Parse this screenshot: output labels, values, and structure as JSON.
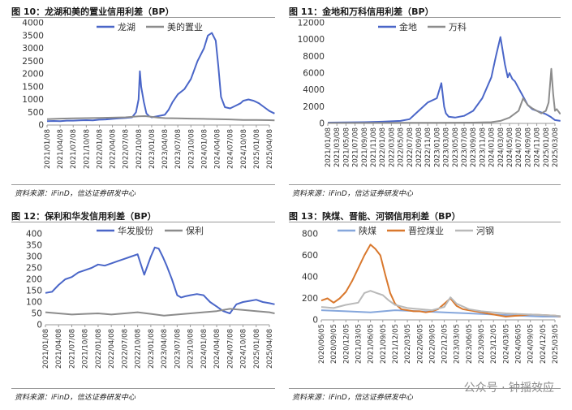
{
  "watermark": "公众号 · 钟揺效应",
  "colors": {
    "blue": "#4a66c8",
    "gray": "#8c8c8c",
    "orange": "#d9782d",
    "lightblue": "#86a7dc",
    "lightgray": "#b9b9b9"
  },
  "chart_data": [
    {
      "type": "line",
      "title": "图 10：龙湖和美的置业信用利差（BP）",
      "source": "资料来源：iFinD，信达证券研发中心",
      "ylim": [
        0,
        4000
      ],
      "yticks": [
        "0",
        "500",
        "1000",
        "1500",
        "2000",
        "2500",
        "3000",
        "3500",
        "4000"
      ],
      "xticks": [
        "2021/01/08",
        "2021/04/08",
        "2021/07/08",
        "2021/10/08",
        "2022/01/08",
        "2022/04/08",
        "2022/07/08",
        "2022/10/08",
        "2023/01/08",
        "2023/04/08",
        "2023/07/08",
        "2023/10/08",
        "2024/01/08",
        "2024/04/08",
        "2024/07/08",
        "2024/10/08",
        "2025/01/08",
        "2025/04/08"
      ],
      "series": [
        {
          "name": "龙湖",
          "color": "#4a66c8",
          "x": [
            0,
            0.5,
            1,
            1.5,
            2,
            2.5,
            3,
            3.5,
            4,
            4.5,
            5,
            5.5,
            6,
            6.5,
            6.8,
            7,
            7.1,
            7.2,
            7.4,
            7.6,
            7.8,
            8,
            8.5,
            9,
            9.3,
            9.6,
            10,
            10.5,
            11,
            11.5,
            12,
            12.3,
            12.6,
            12.9,
            13.1,
            13.3,
            13.6,
            14,
            14.4,
            14.8,
            15,
            15.4,
            15.8,
            16.2,
            16.6,
            17,
            17.4
          ],
          "values": [
            150,
            160,
            150,
            170,
            170,
            180,
            190,
            180,
            210,
            220,
            240,
            260,
            280,
            300,
            500,
            1000,
            2100,
            1500,
            900,
            450,
            350,
            300,
            350,
            400,
            600,
            900,
            1200,
            1400,
            1800,
            2500,
            3000,
            3500,
            3600,
            3300,
            2300,
            1100,
            700,
            650,
            750,
            850,
            950,
            1000,
            950,
            850,
            700,
            550,
            450
          ]
        },
        {
          "name": "美的置业",
          "color": "#8c8c8c",
          "x": [
            0,
            1,
            2,
            3,
            4,
            5,
            6,
            7,
            7.5,
            8,
            8.5,
            9,
            10,
            11,
            12,
            13,
            14,
            15,
            16,
            17,
            17.4
          ],
          "values": [
            230,
            250,
            260,
            270,
            280,
            290,
            300,
            340,
            350,
            320,
            290,
            270,
            260,
            250,
            240,
            230,
            220,
            200,
            200,
            190,
            180
          ]
        }
      ]
    },
    {
      "type": "line",
      "title": "图 11：金地和万科信用利差（BP）",
      "source": "资料来源：iFinD，信达证券研发中心",
      "ylim": [
        0,
        12000
      ],
      "yticks": [
        "0",
        "2000",
        "4000",
        "6000",
        "8000",
        "10000",
        "12000"
      ],
      "xticks": [
        "2021/01/08",
        "2021/03/08",
        "2021/05/08",
        "2021/07/08",
        "2021/09/08",
        "2021/11/08",
        "2022/01/08",
        "2022/03/08",
        "2022/05/08",
        "2022/07/08",
        "2022/09/08",
        "2022/11/08",
        "2023/01/08",
        "2023/03/08",
        "2023/05/08",
        "2023/07/08",
        "2023/09/08",
        "2023/11/08",
        "2024/01/08",
        "2024/03/08",
        "2024/05/08",
        "2024/07/08",
        "2024/09/08",
        "2024/11/08",
        "2025/01/08",
        "2025/03/08"
      ],
      "series": [
        {
          "name": "金地",
          "color": "#4a66c8",
          "x": [
            0,
            2,
            4,
            6,
            8,
            9,
            10,
            11,
            12,
            12.5,
            12.8,
            13,
            13.3,
            14,
            15,
            16,
            17,
            18,
            18.5,
            19,
            19.5,
            19.8,
            20,
            20.3,
            20.6,
            21,
            21.5,
            22,
            22.5,
            23,
            23.5,
            24,
            24.5,
            25,
            25.6
          ],
          "values": [
            100,
            120,
            150,
            200,
            300,
            500,
            1500,
            2500,
            3000,
            4800,
            2000,
            1200,
            800,
            700,
            900,
            1500,
            3000,
            5500,
            8000,
            10300,
            7000,
            5500,
            6000,
            5300,
            5000,
            4200,
            3200,
            2200,
            1700,
            1500,
            1300,
            1100,
            800,
            400,
            300
          ]
        },
        {
          "name": "万科",
          "color": "#8c8c8c",
          "x": [
            0,
            4,
            8,
            12,
            16,
            18,
            19,
            20,
            21,
            21.5,
            22,
            22.5,
            23,
            23.5,
            24,
            24.3,
            24.6,
            24.8,
            25,
            25.2,
            25.6
          ],
          "values": [
            50,
            60,
            70,
            80,
            100,
            150,
            300,
            700,
            1500,
            3000,
            2200,
            1800,
            1500,
            1200,
            1500,
            2500,
            6500,
            3500,
            1500,
            1700,
            1100
          ]
        }
      ]
    },
    {
      "type": "line",
      "title": "图 12：保利和华发信用利差（BP）",
      "source": "资料来源：iFinD，信达证券研发中心",
      "ylim": [
        0,
        400
      ],
      "yticks": [
        "0",
        "50",
        "100",
        "150",
        "200",
        "250",
        "300",
        "350",
        "400"
      ],
      "xticks": [
        "2021/01/08",
        "2021/04/08",
        "2021/07/08",
        "2021/10/08",
        "2022/01/08",
        "2022/04/08",
        "2022/07/08",
        "2022/10/08",
        "2023/01/08",
        "2023/04/08",
        "2023/07/08",
        "2023/10/08",
        "2024/01/08",
        "2024/04/08",
        "2024/07/08",
        "2024/10/08",
        "2025/01/08",
        "2025/04/08"
      ],
      "series": [
        {
          "name": "华发股份",
          "color": "#4a66c8",
          "x": [
            0,
            0.5,
            1,
            1.5,
            2,
            2.5,
            3,
            3.5,
            4,
            4.5,
            5,
            5.5,
            6,
            6.5,
            7,
            7.5,
            8,
            8.3,
            8.6,
            8.9,
            9.2,
            9.6,
            10,
            10.3,
            10.6,
            11,
            11.5,
            12,
            12.5,
            13,
            13.5,
            14,
            14.5,
            15,
            15.5,
            16,
            16.5,
            17,
            17.4
          ],
          "values": [
            140,
            145,
            175,
            200,
            210,
            230,
            240,
            250,
            265,
            260,
            270,
            280,
            290,
            300,
            310,
            220,
            300,
            340,
            335,
            300,
            260,
            200,
            130,
            120,
            125,
            130,
            135,
            130,
            100,
            80,
            60,
            50,
            90,
            100,
            105,
            110,
            100,
            95,
            90
          ]
        },
        {
          "name": "保利",
          "color": "#8c8c8c",
          "x": [
            0,
            1,
            2,
            3,
            4,
            5,
            6,
            7,
            8,
            9,
            10,
            11,
            12,
            13,
            14,
            15,
            16,
            17,
            17.4
          ],
          "values": [
            55,
            50,
            45,
            48,
            50,
            45,
            50,
            55,
            48,
            40,
            45,
            50,
            55,
            60,
            70,
            65,
            60,
            55,
            50
          ]
        }
      ]
    },
    {
      "type": "line",
      "title": "图 13：陕煤、晋能、河钢信用利差（BP）",
      "source": "资料来源：iFinD，信达证券研发中心",
      "ylim": [
        0,
        800
      ],
      "yticks": [
        "0",
        "200",
        "400",
        "600",
        "800"
      ],
      "xticks": [
        "2020/06/05",
        "2020/09/05",
        "2020/12/05",
        "2021/03/05",
        "2021/06/05",
        "2021/09/05",
        "2021/12/05",
        "2022/03/05",
        "2022/06/05",
        "2022/09/05",
        "2022/12/05",
        "2023/03/05",
        "2023/06/05",
        "2023/09/05",
        "2023/12/05",
        "2024/03/05",
        "2024/06/05",
        "2024/09/05",
        "2024/12/05",
        "2025/03/05"
      ],
      "series": [
        {
          "name": "陕煤",
          "color": "#86a7dc",
          "x": [
            0,
            2,
            4,
            6,
            8,
            10,
            12,
            14,
            16,
            18,
            19.6
          ],
          "values": [
            90,
            80,
            70,
            90,
            80,
            70,
            60,
            50,
            40,
            30,
            30
          ]
        },
        {
          "name": "晋控煤业",
          "color": "#d9782d",
          "x": [
            0,
            0.5,
            1,
            1.5,
            2,
            2.5,
            3,
            3.5,
            4,
            4.4,
            4.8,
            5.2,
            5.6,
            6,
            6.5,
            7,
            7.5,
            8,
            8.5,
            9,
            9.5,
            10,
            10.5,
            11,
            11.5,
            12,
            12.5,
            13,
            13.5,
            14,
            14.5,
            15,
            16,
            17,
            18,
            19,
            19.6
          ],
          "values": [
            180,
            200,
            160,
            200,
            260,
            360,
            480,
            600,
            700,
            660,
            600,
            420,
            250,
            150,
            100,
            90,
            80,
            80,
            70,
            80,
            100,
            150,
            200,
            130,
            100,
            90,
            80,
            70,
            60,
            50,
            40,
            30,
            40,
            50,
            45,
            40,
            30
          ]
        },
        {
          "name": "河钢",
          "color": "#b9b9b9",
          "x": [
            0,
            1,
            2,
            3,
            3.5,
            4,
            4.5,
            5,
            5.5,
            6,
            7,
            8,
            9,
            10,
            10.5,
            11,
            12,
            13,
            14,
            15,
            16,
            17,
            18,
            19,
            19.6
          ],
          "values": [
            120,
            110,
            140,
            160,
            250,
            270,
            250,
            230,
            180,
            140,
            110,
            100,
            90,
            120,
            210,
            150,
            100,
            80,
            70,
            60,
            55,
            50,
            45,
            40,
            35
          ]
        }
      ]
    }
  ]
}
